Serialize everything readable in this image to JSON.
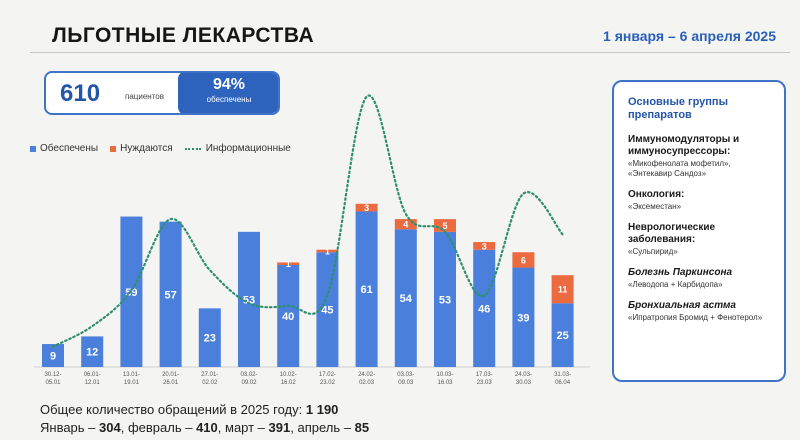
{
  "header": {
    "title": "ЛЬГОТНЫЕ ЛЕКАРСТВА",
    "date_range": "1 января – 6 апреля 2025"
  },
  "stats": {
    "patients": "610",
    "patients_label": "пациентов",
    "percent": "94%",
    "percent_label": "обеспечены"
  },
  "legend": {
    "provided": "Обеспечены",
    "needed": "Нуждаются",
    "informational": "Информационные"
  },
  "colors": {
    "provided": "#4a7fdc",
    "needed": "#ec6a3f",
    "informational": "#2f8f6f",
    "accent": "#2356a8"
  },
  "chart_data": {
    "type": "bar",
    "stacked": true,
    "categories": [
      "30.12-05.01",
      "06.01-12.01",
      "13.01-19.01",
      "20.01-26.01",
      "27.01-02.02",
      "03.02-09.02",
      "10.02-16.02",
      "17.02-23.02",
      "24.02-02.03",
      "03.03-09.03",
      "10.03-16.03",
      "17.03-23.03",
      "24.03-30.03",
      "31.03-06.04"
    ],
    "series": [
      {
        "name": "Обеспечены",
        "values": [
          9,
          12,
          59,
          57,
          23,
          53,
          40,
          45,
          61,
          54,
          53,
          46,
          39,
          25
        ]
      },
      {
        "name": "Нуждаются",
        "values": [
          0,
          0,
          0,
          0,
          0,
          0,
          1,
          1,
          3,
          4,
          5,
          3,
          6,
          11
        ]
      },
      {
        "name": "Информационные",
        "type": "line",
        "values": [
          8,
          16,
          30,
          58,
          38,
          25,
          24,
          28,
          106,
          60,
          53,
          28,
          68,
          52
        ]
      }
    ],
    "ylim": [
      0,
      110
    ]
  },
  "sidebar": {
    "heading": "Основные группы препаратов",
    "groups": [
      {
        "name": "Иммуномодуляторы и иммуносупрессоры:",
        "drugs": "«Микофенолата мофетил», «Энтекавир Сандоз»"
      },
      {
        "name": "Онкология:",
        "drugs": "«Эксеместан»"
      },
      {
        "name": "Неврологические заболевания:",
        "drugs": "«Сульпирид»"
      },
      {
        "name": "Болезнь Паркинсона",
        "drugs": "«Леводопа + Карбидопа»"
      },
      {
        "name": "Бронхиальная астма",
        "drugs": "«Ипратропия Бромид + Фенотерол»"
      }
    ]
  },
  "footer": {
    "total_label": "Общее количество обращений в 2025 году:",
    "total_value": "1 190",
    "jan_label": "Январь –",
    "jan_value": "304",
    "feb_label": ", февраль –",
    "feb_value": "410",
    "mar_label": ", март –",
    "mar_value": "391",
    "apr_label": ", апрель –",
    "apr_value": "85"
  }
}
